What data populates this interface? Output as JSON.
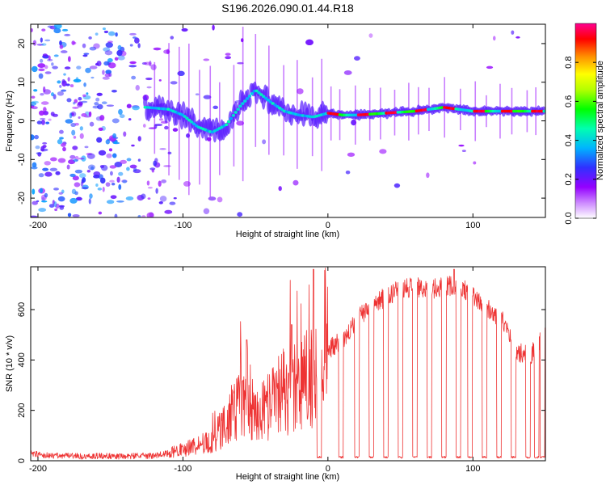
{
  "figure": {
    "title": "S196.2026.090.01.44.R18"
  },
  "chart_data": [
    {
      "type": "heatmap",
      "title": "S196.2026.090.01.44.R18",
      "xlabel": "Height of straight line (km)",
      "ylabel": "Frequency (Hz)",
      "xlim": [
        -205,
        150
      ],
      "ylim": [
        -25,
        25
      ],
      "x_ticks": [
        -200,
        -100,
        0,
        100
      ],
      "y_ticks": [
        -20,
        -10,
        0,
        10,
        20
      ],
      "grid": false,
      "colorbar": {
        "label": "Normalized spectral amplitude",
        "range": [
          0,
          1
        ],
        "ticks": [
          "0.0",
          "0.2",
          "0.4",
          "0.6",
          "0.8"
        ],
        "colors": [
          "#ffffff",
          "#9400ff",
          "#3030ff",
          "#00b4ff",
          "#00ffb0",
          "#00ff00",
          "#b4ff00",
          "#ffff00",
          "#ff9000",
          "#ff0000",
          "#ff0090"
        ]
      },
      "ridge": {
        "description": "Doppler frequency trace (estimated)",
        "x": [
          -125,
          -110,
          -100,
          -90,
          -80,
          -70,
          -60,
          -50,
          -40,
          -30,
          -20,
          -10,
          0,
          10,
          20,
          40,
          60,
          80,
          100,
          120,
          150
        ],
        "y": [
          3.5,
          3.0,
          1.5,
          -1.5,
          -3.0,
          -1.0,
          4.0,
          8.0,
          5.0,
          2.5,
          1.5,
          1.0,
          2.0,
          1.5,
          1.5,
          2.0,
          2.5,
          3.5,
          2.5,
          2.5,
          2.5
        ]
      }
    },
    {
      "type": "line",
      "xlabel": "Height of straight line (km)",
      "ylabel": "SNR (10 * v/v)",
      "xlim": [
        -205,
        150
      ],
      "ylim": [
        0,
        770
      ],
      "x_ticks": [
        -200,
        -100,
        0,
        100
      ],
      "y_ticks": [
        0,
        200,
        400,
        600
      ],
      "grid": false,
      "line_color": "#ee3333",
      "series": [
        {
          "x": [
            -205,
            -200,
            -190,
            -180,
            -170,
            -160,
            -150,
            -140,
            -130,
            -120,
            -110,
            -100,
            -90,
            -80,
            -70,
            -60,
            -50,
            -40,
            -30,
            -20,
            -10,
            0,
            10,
            20,
            30,
            40,
            50,
            60,
            70,
            80,
            90,
            100,
            110,
            120,
            130,
            140,
            150
          ],
          "values": [
            30,
            25,
            20,
            20,
            18,
            20,
            18,
            17,
            20,
            20,
            30,
            45,
            60,
            80,
            150,
            220,
            160,
            230,
            280,
            300,
            340,
            440,
            480,
            560,
            620,
            650,
            680,
            690,
            680,
            690,
            700,
            650,
            610,
            560,
            430,
            420,
            510
          ]
        }
      ],
      "dropouts_x": [
        -6,
        9,
        20,
        30,
        40,
        50,
        60,
        70,
        80,
        90,
        98,
        108,
        118,
        128,
        138,
        144,
        148
      ],
      "peaks": [
        {
          "x": -56,
          "y": 480
        },
        {
          "x": -25,
          "y": 540
        },
        {
          "x": -10,
          "y": 760
        },
        {
          "x": 87,
          "y": 760
        }
      ]
    }
  ]
}
